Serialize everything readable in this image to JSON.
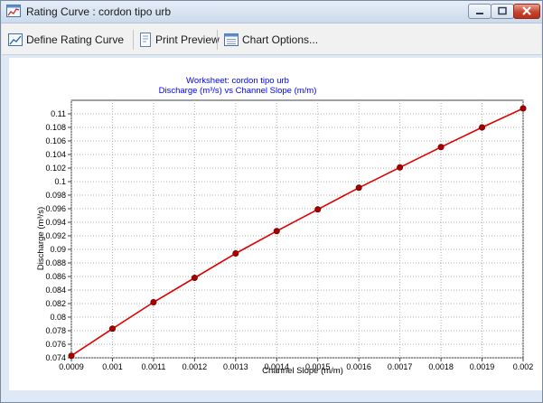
{
  "window": {
    "title": "Rating Curve : cordon tipo urb",
    "icon": "chart-window-icon",
    "buttons": [
      "minimize-icon",
      "maximize-icon",
      "close-icon"
    ]
  },
  "toolbar": {
    "define_label": "Define Rating Curve",
    "preview_label": "Print Preview",
    "options_label": "Chart Options..."
  },
  "colors": {
    "series": "#e00000",
    "marker": "#a80000",
    "title_text": "#0000ff",
    "grid": "#b0b0b0"
  },
  "chart_data": {
    "type": "line",
    "title": "Worksheet: cordon tipo urb",
    "subtitle": "Discharge (m³/s) vs Channel Slope (m/m)",
    "xlabel": "Channel Slope (m/m)",
    "ylabel": "Discharge (m³/s)",
    "xlim": [
      0.0009,
      0.002
    ],
    "ylim": [
      0.074,
      0.112
    ],
    "x_ticks": [
      "0.0009",
      "0.001",
      "0.0011",
      "0.0012",
      "0.0013",
      "0.0014",
      "0.0015",
      "0.0016",
      "0.0017",
      "0.0018",
      "0.0019",
      "0.002"
    ],
    "y_ticks": [
      "0.074",
      "0.076",
      "0.078",
      "0.08",
      "0.082",
      "0.084",
      "0.086",
      "0.088",
      "0.09",
      "0.092",
      "0.094",
      "0.096",
      "0.098",
      "0.1",
      "0.102",
      "0.104",
      "0.106",
      "0.108",
      "0.11"
    ],
    "grid": true,
    "legend": "none",
    "series": [
      {
        "x": [
          0.0009,
          0.001,
          0.0011,
          0.0012,
          0.0013,
          0.0014,
          0.0015,
          0.0016,
          0.0017,
          0.0018,
          0.0019,
          0.002
        ],
        "values": [
          0.0743,
          0.0783,
          0.0822,
          0.0858,
          0.0894,
          0.0927,
          0.0959,
          0.0991,
          0.1021,
          0.1051,
          0.108,
          0.1108
        ]
      }
    ]
  }
}
